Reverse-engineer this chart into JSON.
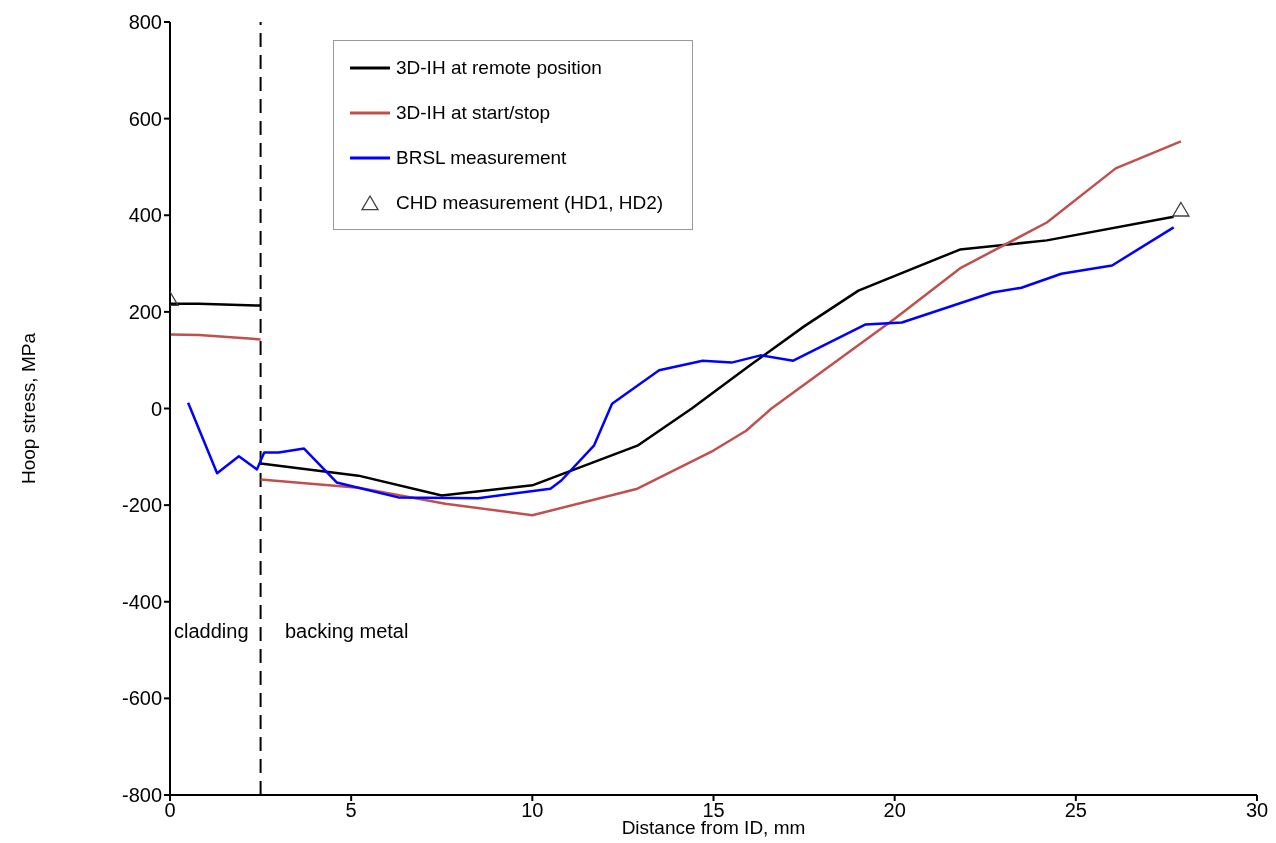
{
  "chart_data": {
    "type": "line",
    "xlabel": "Distance from ID, mm",
    "ylabel": "Hoop stress, MPa",
    "xlim": [
      0,
      30
    ],
    "xticks": [
      0,
      5,
      10,
      15,
      20,
      25,
      30
    ],
    "ylim": [
      -800,
      800
    ],
    "yticks": [
      -800,
      -600,
      -400,
      -200,
      0,
      200,
      400,
      600,
      800
    ],
    "grid": false,
    "legend": "top",
    "line_style": "solid",
    "series": [
      {
        "name": "3D-IH at remote position",
        "color": "#000000",
        "x": [
          2.5,
          5.2,
          7.5,
          10,
          12.9,
          14.4,
          16,
          17.5,
          19,
          21.8,
          24.2,
          27.7
        ],
        "values": [
          -114,
          -139,
          -180,
          -159,
          -77,
          0,
          89,
          170,
          244,
          329,
          348,
          397
        ]
      },
      {
        "name": "3D-IH at start/stop",
        "color": "#c0504d",
        "x": [
          2.5,
          5.2,
          7.6,
          10,
          12.9,
          15,
          15.9,
          16.6,
          20,
          21.8,
          24.2,
          26.1,
          27.9
        ],
        "values": [
          -147,
          -164,
          -197,
          -221,
          -166,
          -87,
          -46,
          0,
          186,
          290,
          385,
          497,
          553
        ]
      },
      {
        "name": "BRSL measurement",
        "color": "#0000ff",
        "x": [
          0.5,
          1.3,
          1.9,
          2.4,
          2.6,
          3.0,
          3.7,
          4.6,
          6.3,
          8.5,
          10.5,
          10.8,
          11.7,
          12.2,
          13.5,
          14.7,
          15.5,
          16.3,
          17.2,
          19.2,
          20.2,
          22.7,
          23.5,
          24.6,
          26.0,
          27.7
        ],
        "values": [
          12,
          -134,
          -99,
          -126,
          -91,
          -91,
          -83,
          -153,
          -184,
          -186,
          -166,
          -149,
          -77,
          10,
          79,
          99,
          95,
          110,
          99,
          174,
          178,
          240,
          250,
          279,
          296,
          375
        ]
      },
      {
        "name": "CHD measurement (HD1, HD2)",
        "color": "#404040",
        "type": "scatter",
        "marker": "triangle",
        "x": [
          0,
          27.9
        ],
        "values": [
          225,
          410
        ]
      },
      {
        "color": "#000000",
        "x": [
          0,
          0.8,
          2.5
        ],
        "values": [
          217,
          217,
          213
        ]
      },
      {
        "color": "#c0504d",
        "x": [
          0,
          0.8,
          2.5
        ],
        "values": [
          153,
          152,
          143
        ]
      }
    ],
    "ref_lines": [
      {
        "axis": "x",
        "value": 2.5,
        "line_style": "dashed",
        "color": "#000000"
      }
    ],
    "annotations": [
      "cladding",
      "backing metal"
    ]
  }
}
